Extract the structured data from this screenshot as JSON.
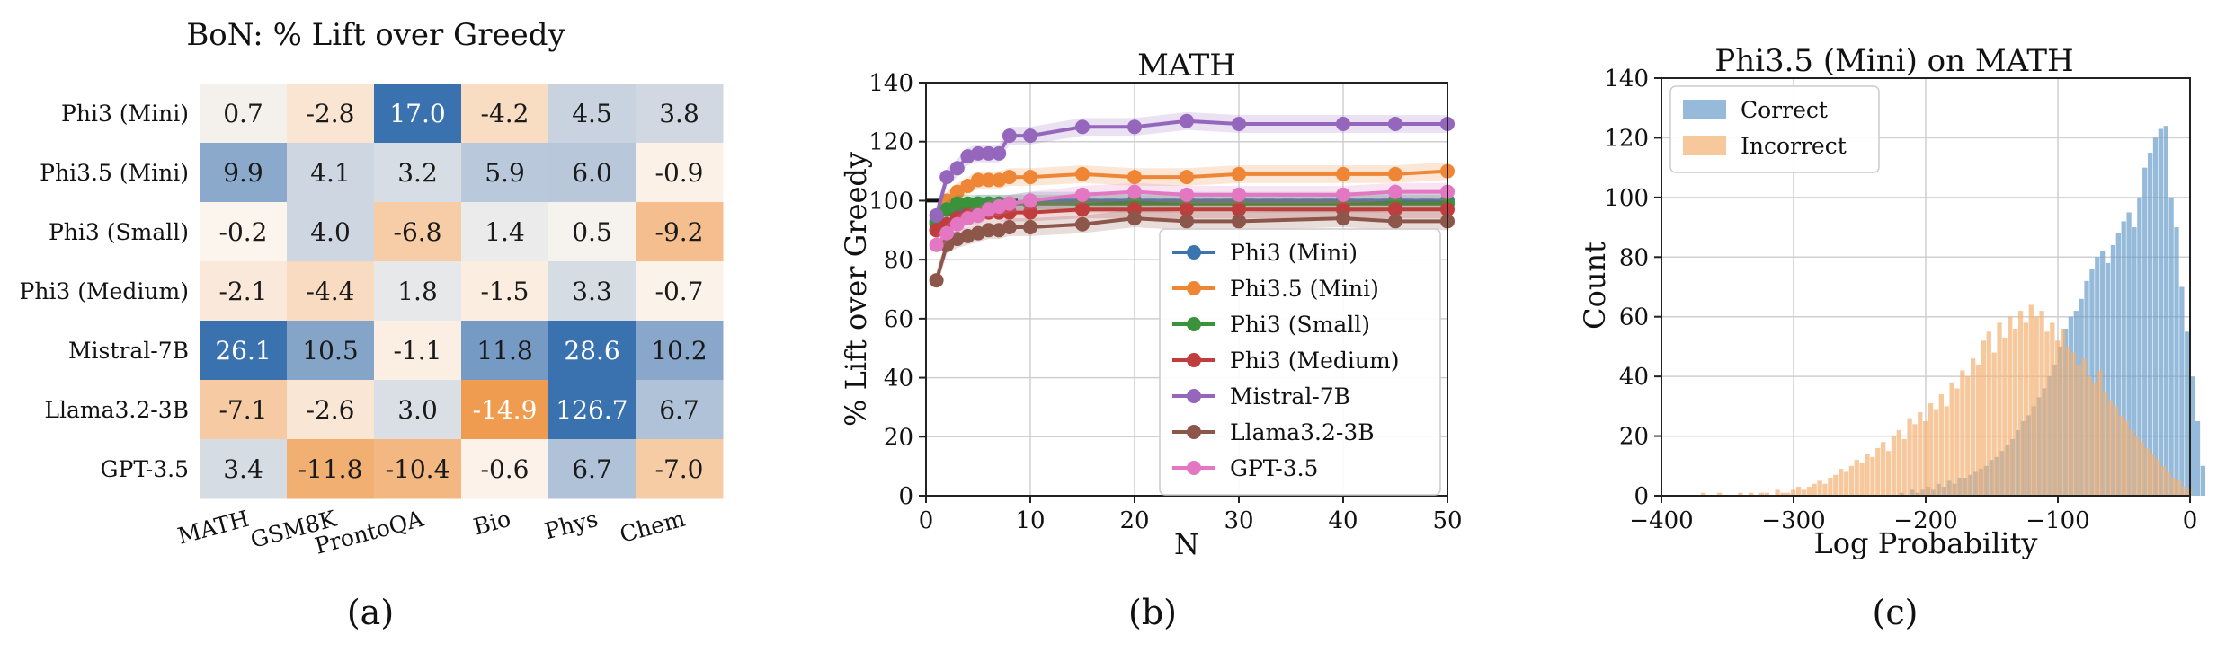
{
  "panels": [
    {
      "label": "(a)"
    },
    {
      "label": "(b)"
    },
    {
      "label": "(c)"
    }
  ],
  "chart_data": [
    {
      "type": "heatmap",
      "title": "BoN: % Lift over Greedy",
      "rows": [
        "Phi3 (Mini)",
        "Phi3.5 (Mini)",
        "Phi3 (Small)",
        "Phi3 (Medium)",
        "Mistral-7B",
        "Llama3.2-3B",
        "GPT-3.5"
      ],
      "columns": [
        "MATH",
        "GSM8K",
        "ProntoQA",
        "Bio",
        "Phys",
        "Chem"
      ],
      "values": [
        [
          0.7,
          -2.8,
          17.0,
          -4.2,
          4.5,
          3.8
        ],
        [
          9.9,
          4.1,
          3.2,
          5.9,
          6.0,
          -0.9
        ],
        [
          -0.2,
          4.0,
          -6.8,
          1.4,
          0.5,
          -9.2
        ],
        [
          -2.1,
          -4.4,
          1.8,
          -1.5,
          3.3,
          -0.7
        ],
        [
          26.1,
          10.5,
          -1.1,
          11.8,
          28.6,
          10.2
        ],
        [
          -7.1,
          -2.6,
          3.0,
          -14.9,
          126.7,
          6.7
        ],
        [
          3.4,
          -11.8,
          -10.4,
          -0.6,
          6.7,
          -7.0
        ]
      ],
      "labels": [
        [
          "0.7",
          "-2.8",
          "17.0",
          "-4.2",
          "4.5",
          "3.8"
        ],
        [
          "9.9",
          "4.1",
          "3.2",
          "5.9",
          "6.0",
          "-0.9"
        ],
        [
          "-0.2",
          "4.0",
          "-6.8",
          "1.4",
          "0.5",
          "-9.2"
        ],
        [
          "-2.1",
          "-4.4",
          "1.8",
          "-1.5",
          "3.3",
          "-0.7"
        ],
        [
          "26.1",
          "10.5",
          "-1.1",
          "11.8",
          "28.6",
          "10.2"
        ],
        [
          "-7.1",
          "-2.6",
          "3.0",
          "-14.9",
          "126.7",
          "6.7"
        ],
        [
          "3.4",
          "-11.8",
          "-10.4",
          "-0.6",
          "6.7",
          "-7.0"
        ]
      ],
      "colors": {
        "positive": "#3a72b0",
        "negative": "#ee8f3a",
        "neutral": "#fcf6f0"
      }
    },
    {
      "type": "line",
      "title": "MATH",
      "xlabel": "N",
      "ylabel": "% Lift over Greedy",
      "xlim": [
        0,
        50
      ],
      "ylim": [
        0,
        140
      ],
      "xticks": [
        "0",
        "10",
        "20",
        "30",
        "40",
        "50"
      ],
      "yticks": [
        "0",
        "20",
        "40",
        "60",
        "80",
        "100",
        "120",
        "140"
      ],
      "x": [
        1,
        2,
        3,
        4,
        5,
        6,
        7,
        8,
        10,
        15,
        20,
        25,
        30,
        40,
        45,
        50
      ],
      "baseline": 100,
      "grid": true,
      "legend_position": "lower-right",
      "series": [
        {
          "name": "Phi3 (Mini)",
          "color": "#3b75af",
          "values": [
            93,
            97,
            98,
            98,
            99,
            99,
            99,
            99,
            100,
            100,
            100,
            100,
            100,
            100,
            100,
            100
          ]
        },
        {
          "name": "Phi3.5 (Mini)",
          "color": "#ef8636",
          "values": [
            90,
            100,
            103,
            105,
            107,
            107,
            107,
            108,
            108,
            109,
            108,
            108,
            109,
            109,
            109,
            110
          ]
        },
        {
          "name": "Phi3 (Small)",
          "color": "#3a923a",
          "values": [
            92,
            97,
            99,
            99,
            99,
            99,
            99,
            99,
            99,
            99,
            99,
            99,
            99,
            99,
            99,
            99
          ]
        },
        {
          "name": "Phi3 (Medium)",
          "color": "#c03d3e",
          "values": [
            90,
            92,
            94,
            95,
            95,
            96,
            96,
            96,
            96,
            97,
            97,
            97,
            97,
            97,
            97,
            97
          ]
        },
        {
          "name": "Mistral-7B",
          "color": "#9467bd",
          "values": [
            95,
            108,
            111,
            115,
            116,
            116,
            116,
            122,
            122,
            125,
            125,
            127,
            126,
            126,
            126,
            126
          ]
        },
        {
          "name": "Llama3.2-3B",
          "color": "#8c564b",
          "values": [
            73,
            85,
            87,
            88,
            89,
            90,
            90,
            91,
            91,
            92,
            94,
            93,
            93,
            94,
            93,
            93
          ]
        },
        {
          "name": "GPT-3.5",
          "color": "#e377c2",
          "values": [
            85,
            89,
            92,
            94,
            95,
            97,
            98,
            99,
            100,
            102,
            103,
            102,
            102,
            102,
            103,
            103
          ]
        }
      ]
    },
    {
      "type": "histogram",
      "title": "Phi3.5 (Mini) on MATH",
      "xlabel": "Log Probability",
      "ylabel": "Count",
      "xlim": [
        -400,
        0
      ],
      "ylim": [
        0,
        140
      ],
      "xticks": [
        "−400",
        "−300",
        "−200",
        "−100",
        "0"
      ],
      "yticks": [
        "0",
        "20",
        "40",
        "60",
        "80",
        "100",
        "120",
        "140"
      ],
      "grid": true,
      "legend_position": "top-left",
      "series": [
        {
          "name": "Correct",
          "color": "#6a9ccb",
          "bin_start": -220,
          "bin_width": 4,
          "counts": [
            1,
            0,
            2,
            1,
            2,
            3,
            2,
            4,
            3,
            5,
            4,
            6,
            6,
            7,
            8,
            9,
            10,
            12,
            13,
            15,
            17,
            19,
            22,
            25,
            27,
            30,
            33,
            36,
            40,
            44,
            50,
            56,
            60,
            62,
            66,
            72,
            76,
            80,
            82,
            78,
            84,
            88,
            92,
            95,
            90,
            100,
            110,
            115,
            120,
            123,
            124,
            100,
            90,
            70,
            55,
            40,
            25,
            10
          ]
        },
        {
          "name": "Incorrect",
          "color": "#f4b072",
          "bin_start": -370,
          "bin_width": 4,
          "counts": [
            1,
            0,
            0,
            1,
            0,
            0,
            0,
            1,
            0,
            1,
            0,
            1,
            1,
            0,
            2,
            1,
            1,
            2,
            3,
            2,
            3,
            4,
            5,
            4,
            6,
            7,
            9,
            8,
            10,
            12,
            11,
            14,
            13,
            16,
            18,
            15,
            20,
            22,
            19,
            26,
            24,
            28,
            25,
            31,
            29,
            34,
            30,
            38,
            36,
            42,
            40,
            46,
            44,
            52,
            55,
            48,
            58,
            53,
            60,
            56,
            62,
            58,
            64,
            60,
            62,
            55,
            58,
            52,
            56,
            50,
            48,
            44,
            46,
            40,
            38,
            42,
            35,
            32,
            30,
            27,
            25,
            22,
            20,
            18,
            16,
            14,
            12,
            10,
            8,
            6,
            5,
            3,
            2
          ]
        }
      ]
    }
  ]
}
